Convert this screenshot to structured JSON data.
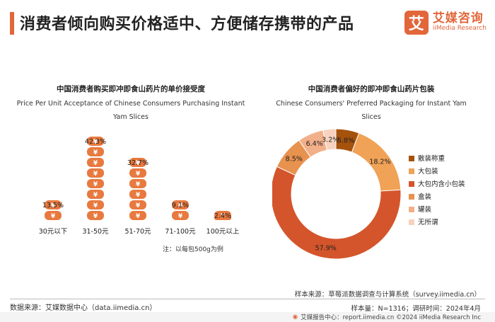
{
  "header": {
    "title": "消费者倾向购买价格适中、方便储存携带的产品",
    "logo_mark": "艾",
    "logo_cn": "艾媒咨询",
    "logo_en": "iiMedia Research"
  },
  "colors": {
    "accent": "#e1663a",
    "coin": "#e8793f",
    "donut": [
      "#a5520d",
      "#f0a257",
      "#d4552b",
      "#e8924f",
      "#f2b08a",
      "#f7d2be"
    ]
  },
  "chart_data": [
    {
      "type": "bar",
      "title": "中国消费者购买即冲即食山药片的单价接受度",
      "subtitle": "Price Per Unit Acceptance of Chinese Consumers Purchasing Instant Yam Slices",
      "categories": [
        "30元以下",
        "31-50元",
        "51-70元",
        "71-100元",
        "100元以上"
      ],
      "values": [
        13.5,
        42.3,
        32.7,
        9.1,
        2.4
      ],
      "unit": "%",
      "style": "stacked-coin-icons",
      "note": "注：以每包500g为例"
    },
    {
      "type": "pie",
      "variant": "donut",
      "title": "中国消费者偏好的即冲即食山药片包装",
      "subtitle": "Chinese Consumers' Preferred Packaging for Instant Yam Slices",
      "labels": [
        "散装称重",
        "大包装",
        "大包内含小包装",
        "盒装",
        "罐装",
        "无所谓"
      ],
      "values": [
        5.8,
        18.2,
        57.9,
        8.5,
        6.4,
        3.2
      ],
      "unit": "%",
      "legend": "right"
    }
  ],
  "footer": {
    "source": "数据来源：艾媒数据中心（data.iimedia.cn）",
    "sample_source": "样本来源：草莓派数据调查与计算系统（survey.iimedia.cn）",
    "sample_info": "样本量：N=1316；调研时间：2024年4月",
    "bar_text": "艾媒报告中心：report.iimedia.cn  ©2024 iiMedia Research Inc"
  }
}
